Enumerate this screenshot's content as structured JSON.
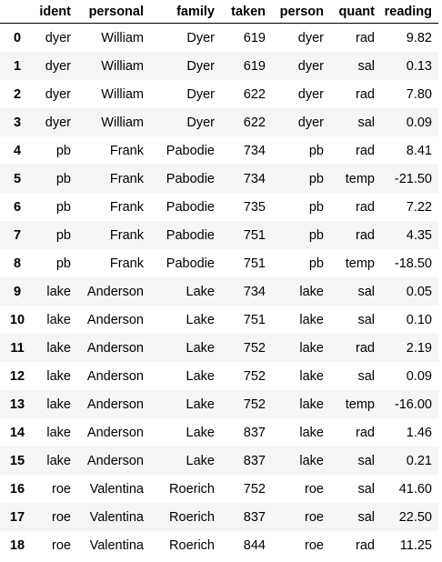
{
  "table": {
    "index_header": "",
    "columns": [
      "ident",
      "personal",
      "family",
      "taken",
      "person",
      "quant",
      "reading"
    ],
    "rows": [
      {
        "index": "0",
        "cells": [
          "dyer",
          "William",
          "Dyer",
          "619",
          "dyer",
          "rad",
          "9.82"
        ]
      },
      {
        "index": "1",
        "cells": [
          "dyer",
          "William",
          "Dyer",
          "619",
          "dyer",
          "sal",
          "0.13"
        ]
      },
      {
        "index": "2",
        "cells": [
          "dyer",
          "William",
          "Dyer",
          "622",
          "dyer",
          "rad",
          "7.80"
        ]
      },
      {
        "index": "3",
        "cells": [
          "dyer",
          "William",
          "Dyer",
          "622",
          "dyer",
          "sal",
          "0.09"
        ]
      },
      {
        "index": "4",
        "cells": [
          "pb",
          "Frank",
          "Pabodie",
          "734",
          "pb",
          "rad",
          "8.41"
        ]
      },
      {
        "index": "5",
        "cells": [
          "pb",
          "Frank",
          "Pabodie",
          "734",
          "pb",
          "temp",
          "-21.50"
        ]
      },
      {
        "index": "6",
        "cells": [
          "pb",
          "Frank",
          "Pabodie",
          "735",
          "pb",
          "rad",
          "7.22"
        ]
      },
      {
        "index": "7",
        "cells": [
          "pb",
          "Frank",
          "Pabodie",
          "751",
          "pb",
          "rad",
          "4.35"
        ]
      },
      {
        "index": "8",
        "cells": [
          "pb",
          "Frank",
          "Pabodie",
          "751",
          "pb",
          "temp",
          "-18.50"
        ]
      },
      {
        "index": "9",
        "cells": [
          "lake",
          "Anderson",
          "Lake",
          "734",
          "lake",
          "sal",
          "0.05"
        ]
      },
      {
        "index": "10",
        "cells": [
          "lake",
          "Anderson",
          "Lake",
          "751",
          "lake",
          "sal",
          "0.10"
        ]
      },
      {
        "index": "11",
        "cells": [
          "lake",
          "Anderson",
          "Lake",
          "752",
          "lake",
          "rad",
          "2.19"
        ]
      },
      {
        "index": "12",
        "cells": [
          "lake",
          "Anderson",
          "Lake",
          "752",
          "lake",
          "sal",
          "0.09"
        ]
      },
      {
        "index": "13",
        "cells": [
          "lake",
          "Anderson",
          "Lake",
          "752",
          "lake",
          "temp",
          "-16.00"
        ]
      },
      {
        "index": "14",
        "cells": [
          "lake",
          "Anderson",
          "Lake",
          "837",
          "lake",
          "rad",
          "1.46"
        ]
      },
      {
        "index": "15",
        "cells": [
          "lake",
          "Anderson",
          "Lake",
          "837",
          "lake",
          "sal",
          "0.21"
        ]
      },
      {
        "index": "16",
        "cells": [
          "roe",
          "Valentina",
          "Roerich",
          "752",
          "roe",
          "sal",
          "41.60"
        ]
      },
      {
        "index": "17",
        "cells": [
          "roe",
          "Valentina",
          "Roerich",
          "837",
          "roe",
          "sal",
          "22.50"
        ]
      },
      {
        "index": "18",
        "cells": [
          "roe",
          "Valentina",
          "Roerich",
          "844",
          "roe",
          "rad",
          "11.25"
        ]
      }
    ]
  }
}
